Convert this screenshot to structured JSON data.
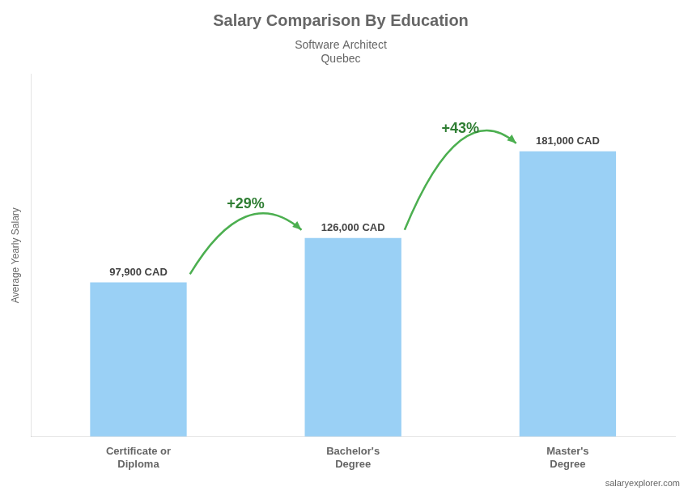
{
  "chart_data": {
    "type": "bar",
    "title": "Salary Comparison By Education",
    "subtitle": [
      "Software Architect",
      "Quebec"
    ],
    "source": "salaryexplorer.com",
    "ylabel": "Average Yearly Salary",
    "categories": [
      "Certificate or\nDiploma",
      "Bachelor's\nDegree",
      "Master's\nDegree"
    ],
    "values": [
      97900,
      126000,
      181000
    ],
    "value_labels": [
      "97,900 CAD",
      "126,000 CAD",
      "181,000 CAD"
    ],
    "data_labels": true,
    "ylim": [
      0,
      230000
    ],
    "grid": false,
    "tick_labels": "x",
    "annotations": [
      {
        "text": "+29%",
        "from": "Certificate or\nDiploma",
        "to": "Bachelor's\nDegree"
      },
      {
        "text": "+43%",
        "from": "Bachelor's\nDegree",
        "to": "Master's\nDegree"
      }
    ]
  }
}
